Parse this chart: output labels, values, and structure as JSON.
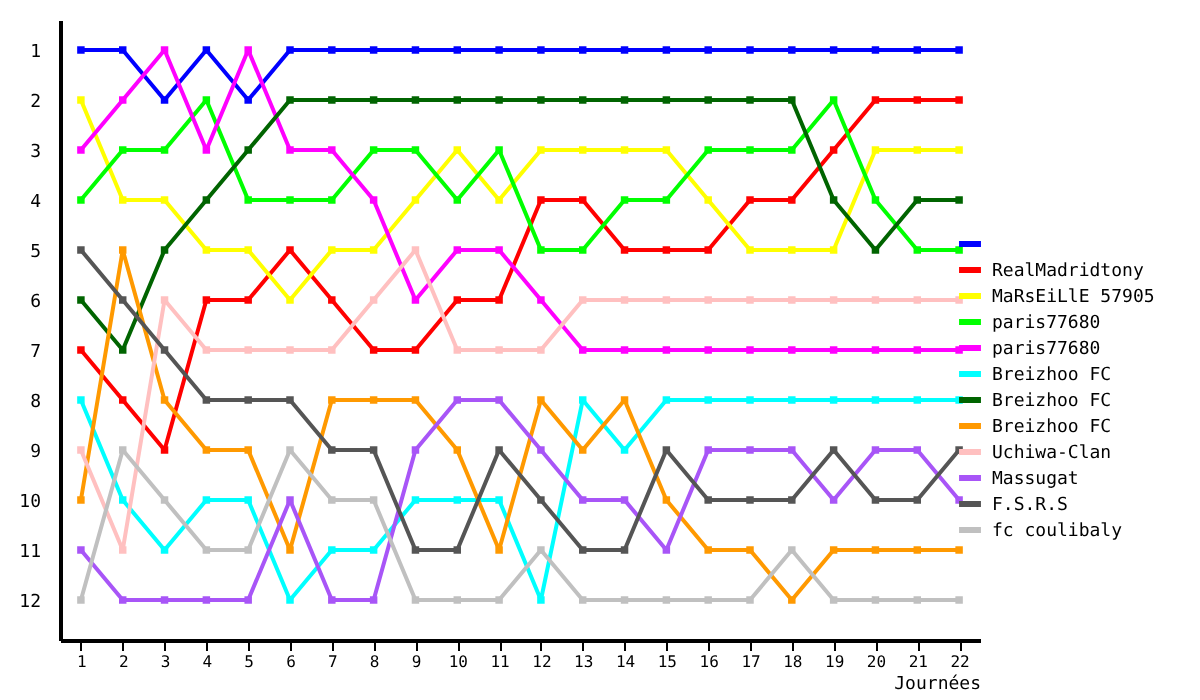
{
  "chart_data": {
    "type": "line",
    "xlabel": "Journées",
    "x": [
      1,
      2,
      3,
      4,
      5,
      6,
      7,
      8,
      9,
      10,
      11,
      12,
      13,
      14,
      15,
      16,
      17,
      18,
      19,
      20,
      21,
      22
    ],
    "xlim": [
      0.5,
      22.5
    ],
    "xticks": [
      1,
      2,
      3,
      4,
      5,
      6,
      7,
      8,
      9,
      10,
      11,
      12,
      13,
      14,
      15,
      16,
      17,
      18,
      19,
      20,
      21,
      22
    ],
    "ylim": [
      12.8,
      0.4
    ],
    "yticks": [
      1,
      2,
      3,
      4,
      5,
      6,
      7,
      8,
      9,
      10,
      11,
      12
    ],
    "marker": "square",
    "line_style": "solid",
    "grid": false,
    "legend": "right",
    "series": [
      {
        "color": "#0000ff",
        "values": [
          1,
          1,
          2,
          1,
          2,
          1,
          1,
          1,
          1,
          1,
          1,
          1,
          1,
          1,
          1,
          1,
          1,
          1,
          1,
          1,
          1,
          1
        ]
      },
      {
        "name": "RealMadridtony",
        "color": "#ff0000",
        "values": [
          7,
          8,
          9,
          6,
          6,
          5,
          6,
          7,
          7,
          6,
          6,
          4,
          4,
          5,
          5,
          5,
          4,
          4,
          3,
          2,
          2,
          2
        ]
      },
      {
        "name": "MaRsEiLlE 57905",
        "color": "#ffff00",
        "values": [
          2,
          4,
          4,
          5,
          5,
          6,
          5,
          5,
          4,
          3,
          4,
          3,
          3,
          3,
          3,
          4,
          5,
          5,
          5,
          3,
          3,
          3
        ]
      },
      {
        "name": "paris77680",
        "color": "#00ff00",
        "values": [
          4,
          3,
          3,
          2,
          4,
          4,
          4,
          3,
          3,
          4,
          3,
          5,
          5,
          4,
          4,
          3,
          3,
          3,
          2,
          4,
          5,
          5
        ]
      },
      {
        "name": "paris77680",
        "color": "#ff00ff",
        "values": [
          3,
          2,
          1,
          3,
          1,
          3,
          3,
          4,
          6,
          5,
          5,
          6,
          7,
          7,
          7,
          7,
          7,
          7,
          7,
          7,
          7,
          7
        ]
      },
      {
        "name": "Breizhoo FC",
        "color": "#00ffff",
        "values": [
          8,
          10,
          11,
          10,
          10,
          12,
          11,
          11,
          10,
          10,
          10,
          12,
          8,
          9,
          8,
          8,
          8,
          8,
          8,
          8,
          8,
          8
        ]
      },
      {
        "name": "Breizhoo FC",
        "color": "#006400",
        "values": [
          6,
          7,
          5,
          4,
          3,
          2,
          2,
          2,
          2,
          2,
          2,
          2,
          2,
          2,
          2,
          2,
          2,
          2,
          4,
          5,
          4,
          4
        ]
      },
      {
        "name": "Breizhoo FC",
        "color": "#ff9900",
        "values": [
          10,
          5,
          8,
          9,
          9,
          11,
          8,
          8,
          8,
          9,
          11,
          8,
          9,
          8,
          10,
          11,
          11,
          12,
          11,
          11,
          11,
          11
        ]
      },
      {
        "name": "Uchiwa-Clan",
        "color": "#ffc0c0",
        "values": [
          9,
          11,
          6,
          7,
          7,
          7,
          7,
          6,
          5,
          7,
          7,
          7,
          6,
          6,
          6,
          6,
          6,
          6,
          6,
          6,
          6,
          6
        ]
      },
      {
        "name": "Massugat",
        "color": "#a855f7",
        "values": [
          11,
          12,
          12,
          12,
          12,
          10,
          12,
          12,
          9,
          8,
          8,
          9,
          10,
          10,
          11,
          9,
          9,
          9,
          10,
          9,
          9,
          10
        ]
      },
      {
        "name": "F.S.R.S",
        "color": "#555555",
        "values": [
          5,
          6,
          7,
          8,
          8,
          8,
          9,
          9,
          11,
          11,
          9,
          10,
          11,
          11,
          9,
          10,
          10,
          10,
          9,
          10,
          10,
          9
        ]
      },
      {
        "name": "fc coulibaly",
        "color": "#c0c0c0",
        "values": [
          12,
          9,
          10,
          11,
          11,
          9,
          10,
          10,
          12,
          12,
          12,
          11,
          12,
          12,
          12,
          12,
          12,
          11,
          12,
          12,
          12,
          12
        ]
      }
    ]
  }
}
